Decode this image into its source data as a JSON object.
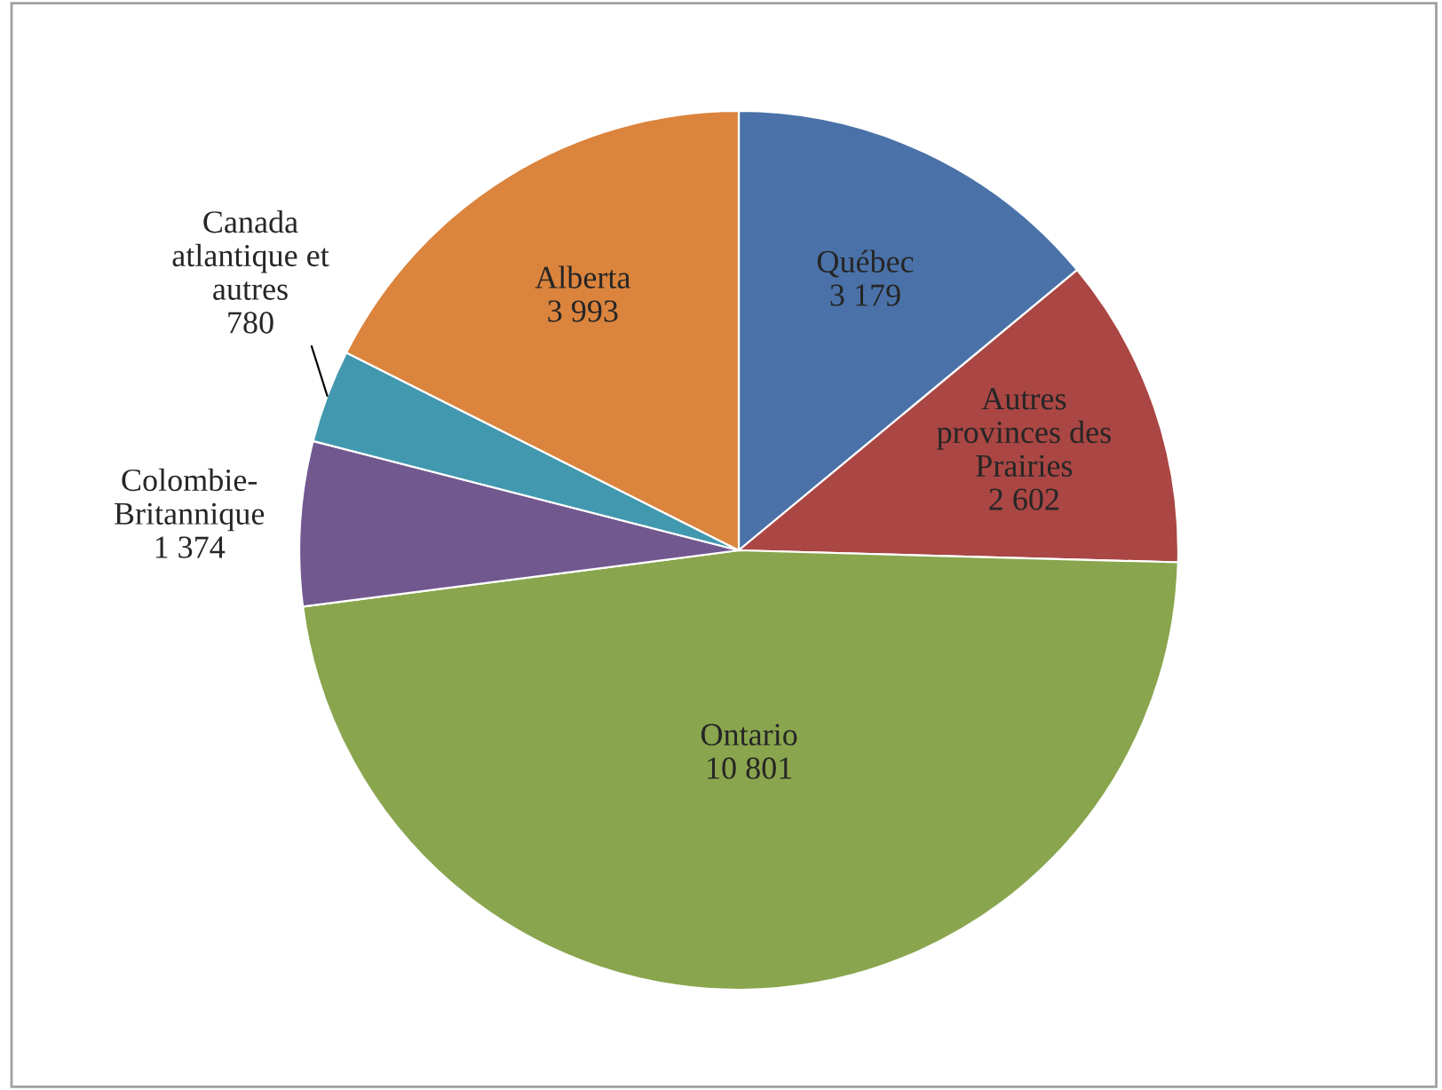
{
  "chart_data": {
    "type": "pie",
    "categories": [
      "Québec",
      "Autres\nprovinces des\nPrairies",
      "Ontario",
      "Colombie-\nBritannique",
      "Canada\natlantique et\nautres",
      "Alberta"
    ],
    "values": [
      3179,
      2602,
      10801,
      1374,
      780,
      3993
    ],
    "value_labels": [
      "3 179",
      "2 602",
      "10 801",
      "1 374",
      "780",
      "3 993"
    ],
    "colors": [
      "#4a72a8",
      "#aa4643",
      "#89a54e",
      "#71588f",
      "#4198af",
      "#db843d"
    ],
    "legend": false
  }
}
